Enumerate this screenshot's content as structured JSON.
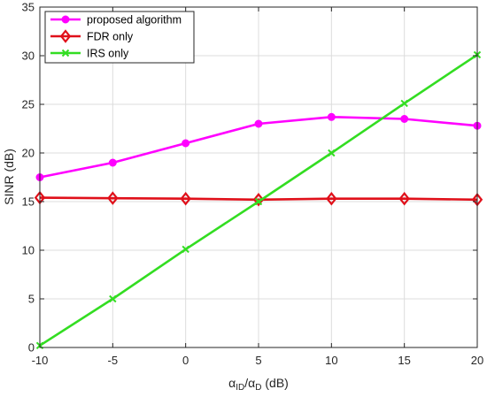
{
  "chart_data": {
    "type": "line",
    "x": [
      -10,
      -5,
      0,
      5,
      10,
      15,
      20
    ],
    "xlabel_main": "α",
    "xlabel_sub1": "ID",
    "xlabel_sep": "/α",
    "xlabel_sub2": "D",
    "xlabel_unit": " (dB)",
    "ylabel": "SINR (dB)",
    "xlim": [
      -10,
      20
    ],
    "ylim": [
      0,
      35
    ],
    "xticks": [
      -10,
      -5,
      0,
      5,
      10,
      15,
      20
    ],
    "yticks": [
      0,
      5,
      10,
      15,
      20,
      25,
      30,
      35
    ],
    "grid": true,
    "legend_position": "top-left",
    "series": [
      {
        "name": "proposed algorithm",
        "color": "#ff00ff",
        "marker": "circle",
        "values": [
          17.5,
          19.0,
          21.0,
          23.0,
          23.7,
          23.5,
          22.8
        ]
      },
      {
        "name": "FDR only",
        "color": "#e0101a",
        "marker": "diamond",
        "values": [
          15.4,
          15.35,
          15.3,
          15.2,
          15.3,
          15.3,
          15.2
        ]
      },
      {
        "name": "IRS only",
        "color": "#33dd22",
        "marker": "x",
        "values": [
          0.2,
          5.0,
          10.1,
          15.0,
          20.0,
          25.1,
          30.1
        ]
      }
    ]
  }
}
